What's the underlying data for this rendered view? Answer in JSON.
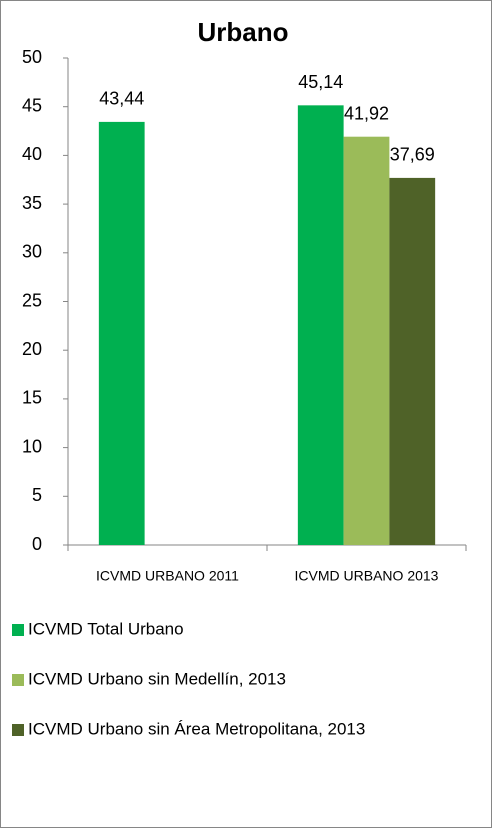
{
  "chart_data": {
    "type": "bar",
    "title": "Urbano",
    "categories": [
      "ICVMD URBANO 2011",
      "ICVMD URBANO 2013"
    ],
    "series": [
      {
        "name": "ICVMD Total Urbano",
        "color": "#00b050",
        "values": [
          43.44,
          45.14
        ],
        "value_labels": [
          "43,44",
          "45,14"
        ]
      },
      {
        "name": "ICVMD Urbano sin Medellín, 2013",
        "color": "#9bbb59",
        "values": [
          null,
          41.92
        ],
        "value_labels": [
          null,
          "41,92"
        ]
      },
      {
        "name": "ICVMD Urbano sin Área Metropolitana, 2013",
        "color": "#4f6228",
        "values": [
          null,
          37.69
        ],
        "value_labels": [
          null,
          "37,69"
        ]
      }
    ],
    "ylim": [
      0,
      50
    ],
    "yticks": [
      0,
      5,
      10,
      15,
      20,
      25,
      30,
      35,
      40,
      45,
      50
    ],
    "grid": false,
    "legend": "bottom"
  }
}
